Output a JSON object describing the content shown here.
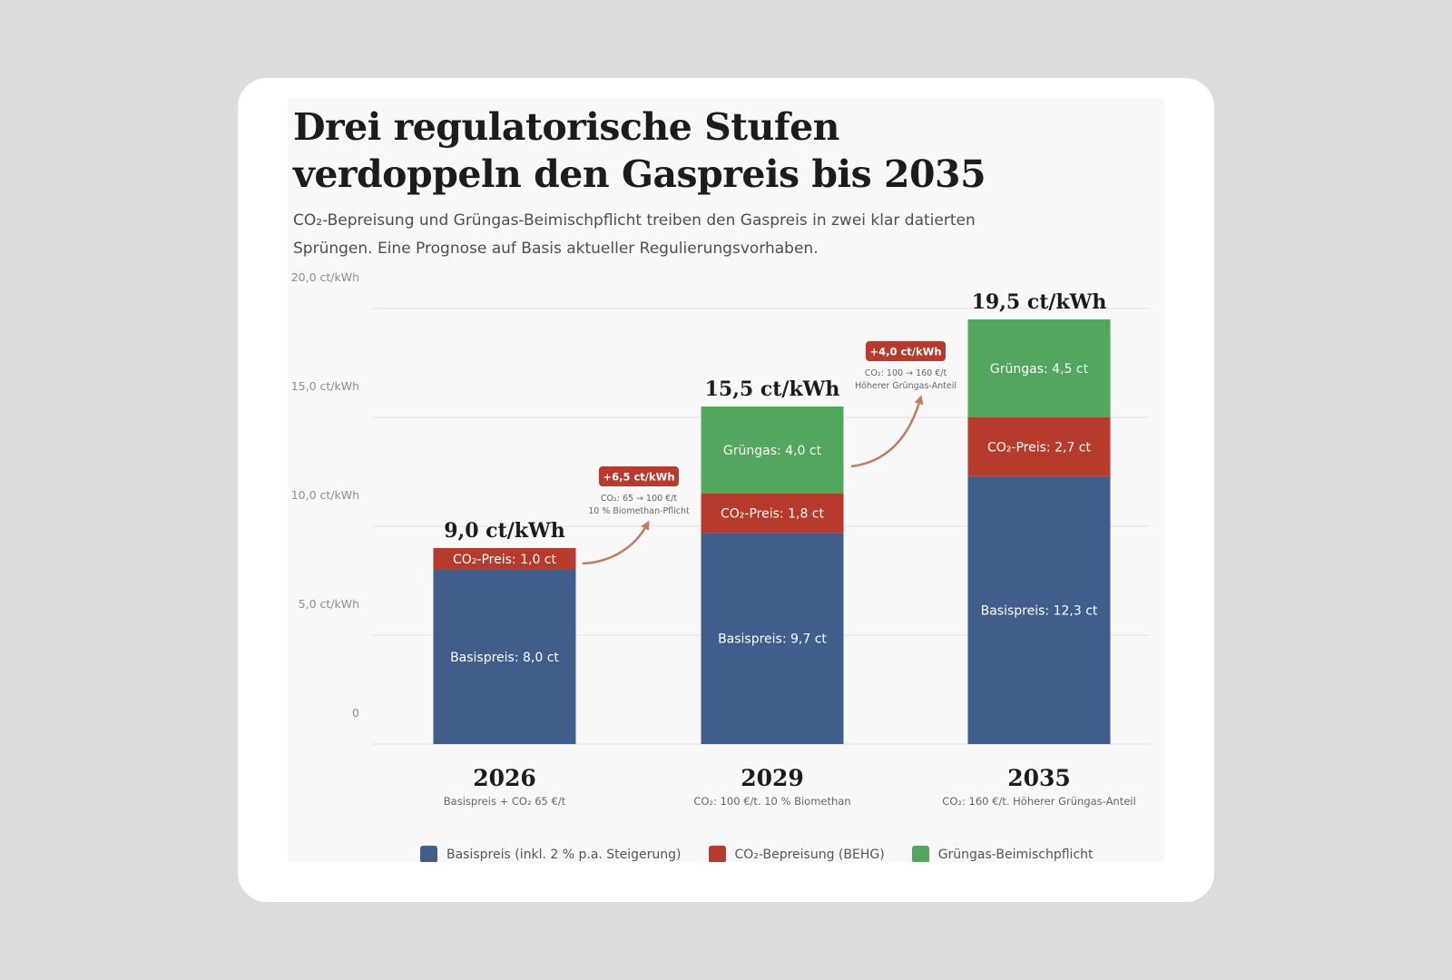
{
  "title_lines": [
    "Drei regulatorische Stufen",
    "verdoppeln den Gaspreis bis 2035"
  ],
  "subtitle_lines": [
    "CO₂-Bepreisung und Grüngas-Beimischpflicht treiben den Gaspreis in zwei klar datierten",
    "Sprüngen. Eine Prognose auf Basis aktueller Regulierungsvorhaben."
  ],
  "colors": {
    "basis": "#405d8b",
    "co2": "#b73b2c",
    "gruengas": "#53a65d",
    "badge": "#b8392d",
    "arrow": "#c47b62"
  },
  "chart_data": {
    "type": "bar",
    "stacked": true,
    "categories": [
      "2026",
      "2029",
      "2035"
    ],
    "category_subtitles": [
      "Basispreis + CO₂ 65 €/t",
      "CO₂: 100 €/t. 10 % Biomethan",
      "CO₂: 160 €/t. Höherer Grüngas-Anteil"
    ],
    "series": [
      {
        "name": "Basispreis (inkl. 2 % p.a. Steigerung)",
        "key": "basis",
        "values": [
          8.0,
          9.7,
          12.3
        ],
        "labels": [
          "Basispreis: 8,0 ct",
          "Basispreis: 9,7 ct",
          "Basispreis: 12,3 ct"
        ]
      },
      {
        "name": "CO₂-Bepreisung (BEHG)",
        "key": "co2",
        "values": [
          1.0,
          1.8,
          2.7
        ],
        "labels": [
          "CO₂-Preis: 1,0 ct",
          "CO₂-Preis: 1,8 ct",
          "CO₂-Preis: 2,7 ct"
        ]
      },
      {
        "name": "Grüngas-Beimischpflicht",
        "key": "gruengas",
        "values": [
          0,
          4.0,
          4.5
        ],
        "labels": [
          "",
          "Grüngas: 4,0 ct",
          "Grüngas: 4,5 ct"
        ]
      }
    ],
    "totals": [
      9.0,
      15.5,
      19.5
    ],
    "total_labels": [
      "9,0 ct/kWh",
      "15,5 ct/kWh",
      "19,5 ct/kWh"
    ],
    "ylim": [
      0,
      20
    ],
    "yticks": [
      0,
      5,
      10,
      15,
      20
    ],
    "ytick_labels": [
      "0",
      "5,0 ct/kWh",
      "10,0 ct/kWh",
      "15,0 ct/kWh",
      "20,0 ct/kWh"
    ],
    "grid": true,
    "legend_position": "bottom",
    "annotations": [
      {
        "badge": "+6,5 ct/kWh",
        "lines": [
          "CO₂: 65 → 100 €/t",
          "10 % Biomethan-Pflicht"
        ],
        "between": [
          0,
          1
        ]
      },
      {
        "badge": "+4,0 ct/kWh",
        "lines": [
          "CO₂: 100 → 160 €/t",
          "Höherer Grüngas-Anteil"
        ],
        "between": [
          1,
          2
        ]
      }
    ]
  }
}
